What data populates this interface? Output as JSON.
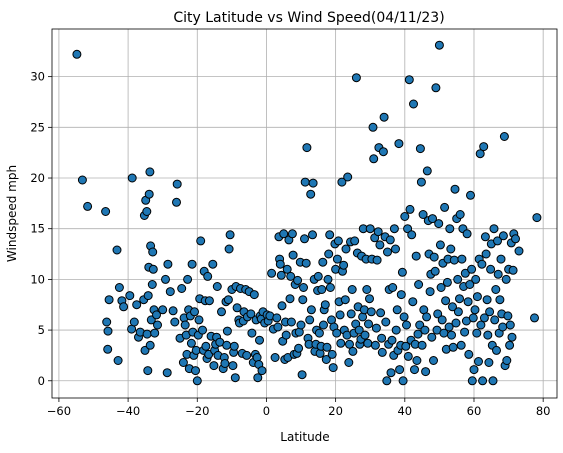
{
  "chart_data": {
    "type": "scatter",
    "title": "City Latitude vs Wind Speed(04/11/23)",
    "xlabel": "Latitude",
    "ylabel": "Windspeed mph",
    "xlim": [
      -62,
      84
    ],
    "ylim": [
      -1.7,
      34.7
    ],
    "xticks": [
      -60,
      -40,
      -20,
      0,
      20,
      40,
      60,
      80
    ],
    "yticks": [
      0,
      5,
      10,
      15,
      20,
      25,
      30
    ],
    "grid": true,
    "marker_color": "#1f77b4",
    "edge_color": "#000000",
    "points": [
      [
        -54.8,
        32.2
      ],
      [
        -53.2,
        19.8
      ],
      [
        -51.7,
        17.2
      ],
      [
        -46.5,
        16.7
      ],
      [
        -46.2,
        5.8
      ],
      [
        -45.9,
        3.1
      ],
      [
        -45.8,
        4.9
      ],
      [
        -45.5,
        8.0
      ],
      [
        -43.2,
        12.9
      ],
      [
        -42.9,
        2.0
      ],
      [
        -42.5,
        9.2
      ],
      [
        -41.8,
        7.9
      ],
      [
        -41.3,
        7.3
      ],
      [
        -39.5,
        8.4
      ],
      [
        -39.0,
        5.1
      ],
      [
        -38.8,
        20.0
      ],
      [
        -38.2,
        5.8
      ],
      [
        -37.5,
        7.5
      ],
      [
        -37.0,
        4.3
      ],
      [
        -36.5,
        4.8
      ],
      [
        -35.5,
        8.0
      ],
      [
        -35.3,
        16.3
      ],
      [
        -35.1,
        3.0
      ],
      [
        -34.9,
        17.8
      ],
      [
        -34.6,
        16.7
      ],
      [
        -34.5,
        4.6
      ],
      [
        -34.3,
        1.0
      ],
      [
        -34.2,
        8.4
      ],
      [
        -34.0,
        11.2
      ],
      [
        -33.9,
        18.4
      ],
      [
        -33.7,
        20.6
      ],
      [
        -33.6,
        3.5
      ],
      [
        -33.5,
        13.3
      ],
      [
        -33.3,
        6.0
      ],
      [
        -33.0,
        9.5
      ],
      [
        -32.9,
        12.7
      ],
      [
        -32.7,
        11.0
      ],
      [
        -32.5,
        7.0
      ],
      [
        -32.3,
        4.7
      ],
      [
        -31.8,
        6.5
      ],
      [
        -31.5,
        5.5
      ],
      [
        -30.0,
        7.0
      ],
      [
        -29.2,
        10.0
      ],
      [
        -28.7,
        0.8
      ],
      [
        -28.5,
        11.5
      ],
      [
        -27.8,
        8.8
      ],
      [
        -27.0,
        6.9
      ],
      [
        -26.5,
        5.8
      ],
      [
        -26.0,
        17.6
      ],
      [
        -25.8,
        19.4
      ],
      [
        -25.0,
        4.2
      ],
      [
        -24.5,
        9.1
      ],
      [
        -24.0,
        1.8
      ],
      [
        -23.8,
        6.2
      ],
      [
        -23.5,
        5.5
      ],
      [
        -23.2,
        4.5
      ],
      [
        -23.0,
        2.6
      ],
      [
        -22.8,
        10.0
      ],
      [
        -22.5,
        7.0
      ],
      [
        -22.3,
        1.2
      ],
      [
        -22.0,
        6.4
      ],
      [
        -21.7,
        3.7
      ],
      [
        -21.5,
        11.5
      ],
      [
        -21.3,
        4.8
      ],
      [
        -21.0,
        2.5
      ],
      [
        -20.8,
        6.8
      ],
      [
        -20.5,
        1.0
      ],
      [
        -20.3,
        3.0
      ],
      [
        -20.0,
        0.0
      ],
      [
        -19.7,
        4.5
      ],
      [
        -19.5,
        6.0
      ],
      [
        -19.3,
        8.1
      ],
      [
        -19.0,
        13.8
      ],
      [
        -18.5,
        5.0
      ],
      [
        -18.2,
        3.0
      ],
      [
        -18.0,
        10.8
      ],
      [
        -17.7,
        7.9
      ],
      [
        -17.5,
        3.4
      ],
      [
        -17.2,
        2.2
      ],
      [
        -17.0,
        10.3
      ],
      [
        -16.7,
        2.6
      ],
      [
        -16.5,
        7.9
      ],
      [
        -16.0,
        4.4
      ],
      [
        -15.5,
        11.5
      ],
      [
        -15.2,
        1.5
      ],
      [
        -15.0,
        3.0
      ],
      [
        -14.7,
        3.6
      ],
      [
        -14.4,
        4.3
      ],
      [
        -14.2,
        9.3
      ],
      [
        -14.0,
        2.5
      ],
      [
        -13.5,
        3.8
      ],
      [
        -13.0,
        6.8
      ],
      [
        -12.5,
        1.2
      ],
      [
        -12.2,
        2.3
      ],
      [
        -12.0,
        1.7
      ],
      [
        -11.7,
        7.8
      ],
      [
        -11.5,
        3.5
      ],
      [
        -11.3,
        4.9
      ],
      [
        -11.0,
        8.0
      ],
      [
        -10.8,
        13.0
      ],
      [
        -10.5,
        14.4
      ],
      [
        -10.0,
        9.0
      ],
      [
        -9.7,
        1.5
      ],
      [
        -9.5,
        2.8
      ],
      [
        -9.3,
        3.4
      ],
      [
        -9.0,
        0.3
      ],
      [
        -8.8,
        9.3
      ],
      [
        -8.5,
        7.2
      ],
      [
        -8.0,
        6.0
      ],
      [
        -7.8,
        5.7
      ],
      [
        -7.5,
        9.1
      ],
      [
        -7.0,
        2.7
      ],
      [
        -6.7,
        5.9
      ],
      [
        -6.5,
        6.8
      ],
      [
        -6.0,
        9.0
      ],
      [
        -5.7,
        2.5
      ],
      [
        -5.5,
        6.3
      ],
      [
        -5.0,
        8.8
      ],
      [
        -4.5,
        6.6
      ],
      [
        -4.2,
        4.7
      ],
      [
        -3.8,
        1.8
      ],
      [
        -3.5,
        8.5
      ],
      [
        -3.2,
        2.6
      ],
      [
        -3.0,
        6.0
      ],
      [
        -2.7,
        2.3
      ],
      [
        -2.5,
        0.3
      ],
      [
        -2.2,
        1.6
      ],
      [
        -2.0,
        4.0
      ],
      [
        -1.8,
        6.4
      ],
      [
        -1.5,
        6.1
      ],
      [
        -1.3,
        1.0
      ],
      [
        -1.0,
        6.8
      ],
      [
        -0.5,
        5.7
      ],
      [
        0.2,
        6.5
      ],
      [
        0.5,
        5.9
      ],
      [
        1.0,
        6.4
      ],
      [
        1.5,
        10.6
      ],
      [
        2.0,
        5.1
      ],
      [
        2.5,
        2.3
      ],
      [
        3.0,
        6.2
      ],
      [
        3.3,
        5.3
      ],
      [
        3.6,
        14.2
      ],
      [
        3.8,
        12.0
      ],
      [
        4.0,
        11.5
      ],
      [
        4.3,
        10.4
      ],
      [
        4.5,
        7.4
      ],
      [
        4.7,
        3.9
      ],
      [
        5.0,
        14.5
      ],
      [
        5.3,
        2.1
      ],
      [
        5.5,
        5.8
      ],
      [
        5.7,
        4.5
      ],
      [
        6.0,
        11.0
      ],
      [
        6.2,
        2.3
      ],
      [
        6.5,
        13.9
      ],
      [
        6.8,
        8.1
      ],
      [
        7.0,
        10.3
      ],
      [
        7.2,
        5.8
      ],
      [
        7.5,
        14.5
      ],
      [
        7.7,
        12.4
      ],
      [
        8.0,
        2.6
      ],
      [
        8.3,
        9.5
      ],
      [
        8.5,
        4.7
      ],
      [
        8.8,
        2.7
      ],
      [
        9.0,
        9.9
      ],
      [
        9.3,
        3.2
      ],
      [
        9.5,
        4.8
      ],
      [
        9.8,
        11.7
      ],
      [
        10.0,
        5.5
      ],
      [
        10.3,
        0.6
      ],
      [
        10.5,
        8.0
      ],
      [
        10.7,
        9.2
      ],
      [
        11.0,
        14.0
      ],
      [
        11.2,
        19.6
      ],
      [
        11.5,
        11.6
      ],
      [
        11.7,
        23.0
      ],
      [
        12.0,
        4.2
      ],
      [
        12.3,
        3.6
      ],
      [
        12.5,
        6.0
      ],
      [
        12.8,
        18.4
      ],
      [
        13.0,
        7.0
      ],
      [
        13.3,
        14.4
      ],
      [
        13.5,
        19.5
      ],
      [
        13.8,
        10.0
      ],
      [
        14.0,
        2.9
      ],
      [
        14.3,
        3.6
      ],
      [
        14.5,
        5.0
      ],
      [
        14.8,
        8.9
      ],
      [
        15.0,
        10.3
      ],
      [
        15.3,
        4.7
      ],
      [
        15.5,
        2.7
      ],
      [
        15.8,
        3.4
      ],
      [
        16.0,
        9.0
      ],
      [
        16.3,
        11.7
      ],
      [
        16.5,
        5.5
      ],
      [
        16.7,
        7.0
      ],
      [
        17.0,
        7.5
      ],
      [
        17.3,
        2.1
      ],
      [
        17.5,
        3.3
      ],
      [
        17.8,
        10.0
      ],
      [
        18.0,
        12.5
      ],
      [
        18.3,
        14.4
      ],
      [
        18.5,
        9.2
      ],
      [
        18.8,
        6.0
      ],
      [
        19.0,
        2.6
      ],
      [
        19.3,
        1.3
      ],
      [
        19.5,
        5.3
      ],
      [
        19.8,
        13.5
      ],
      [
        20.0,
        11.0
      ],
      [
        20.3,
        4.7
      ],
      [
        20.5,
        12.0
      ],
      [
        20.8,
        13.8
      ],
      [
        21.0,
        7.8
      ],
      [
        21.3,
        6.5
      ],
      [
        21.5,
        3.7
      ],
      [
        21.8,
        19.6
      ],
      [
        22.0,
        10.8
      ],
      [
        22.3,
        11.4
      ],
      [
        22.5,
        5.0
      ],
      [
        22.8,
        8.0
      ],
      [
        23.0,
        13.0
      ],
      [
        23.3,
        4.5
      ],
      [
        23.5,
        20.1
      ],
      [
        23.8,
        1.8
      ],
      [
        24.0,
        3.6
      ],
      [
        24.3,
        13.7
      ],
      [
        24.5,
        6.6
      ],
      [
        24.8,
        9.0
      ],
      [
        25.0,
        2.9
      ],
      [
        25.3,
        4.7
      ],
      [
        25.5,
        13.8
      ],
      [
        25.8,
        5.6
      ],
      [
        26.0,
        29.9
      ],
      [
        26.3,
        12.6
      ],
      [
        26.5,
        7.3
      ],
      [
        26.8,
        5.0
      ],
      [
        27.0,
        3.6
      ],
      [
        27.3,
        4.1
      ],
      [
        27.5,
        12.3
      ],
      [
        27.8,
        6.3
      ],
      [
        28.0,
        15.0
      ],
      [
        28.3,
        7.0
      ],
      [
        28.5,
        4.5
      ],
      [
        28.8,
        12.0
      ],
      [
        29.0,
        9.0
      ],
      [
        29.3,
        3.7
      ],
      [
        29.5,
        5.6
      ],
      [
        29.8,
        8.1
      ],
      [
        30.0,
        15.0
      ],
      [
        30.3,
        6.8
      ],
      [
        30.5,
        12.0
      ],
      [
        30.8,
        25.0
      ],
      [
        31.0,
        21.9
      ],
      [
        31.3,
        14.1
      ],
      [
        31.5,
        3.5
      ],
      [
        31.8,
        5.2
      ],
      [
        32.0,
        11.9
      ],
      [
        32.3,
        14.7
      ],
      [
        32.5,
        23.0
      ],
      [
        32.8,
        13.4
      ],
      [
        33.0,
        6.7
      ],
      [
        33.3,
        4.2
      ],
      [
        33.5,
        2.8
      ],
      [
        33.8,
        22.6
      ],
      [
        34.0,
        26.0
      ],
      [
        34.3,
        14.2
      ],
      [
        34.5,
        5.8
      ],
      [
        34.8,
        0.0
      ],
      [
        35.0,
        12.7
      ],
      [
        35.3,
        3.6
      ],
      [
        35.5,
        9.0
      ],
      [
        35.8,
        13.9
      ],
      [
        36.0,
        0.8
      ],
      [
        36.3,
        4.0
      ],
      [
        36.5,
        9.2
      ],
      [
        36.8,
        2.5
      ],
      [
        37.0,
        15.0
      ],
      [
        37.3,
        13.0
      ],
      [
        37.5,
        5.0
      ],
      [
        37.8,
        7.0
      ],
      [
        38.0,
        3.0
      ],
      [
        38.3,
        23.4
      ],
      [
        38.5,
        1.1
      ],
      [
        38.8,
        3.5
      ],
      [
        39.0,
        8.5
      ],
      [
        39.3,
        10.7
      ],
      [
        39.5,
        0.0
      ],
      [
        39.8,
        6.3
      ],
      [
        40.0,
        16.2
      ],
      [
        40.3,
        3.4
      ],
      [
        40.5,
        5.5
      ],
      [
        40.8,
        15.0
      ],
      [
        41.0,
        2.4
      ],
      [
        41.3,
        29.7
      ],
      [
        41.5,
        16.9
      ],
      [
        41.8,
        4.0
      ],
      [
        42.0,
        14.4
      ],
      [
        42.3,
        7.8
      ],
      [
        42.5,
        27.3
      ],
      [
        42.8,
        1.1
      ],
      [
        43.0,
        3.6
      ],
      [
        43.3,
        12.3
      ],
      [
        43.5,
        2.0
      ],
      [
        43.8,
        4.6
      ],
      [
        44.0,
        9.5
      ],
      [
        44.3,
        5.5
      ],
      [
        44.5,
        22.9
      ],
      [
        44.8,
        19.6
      ],
      [
        45.0,
        3.5
      ],
      [
        45.3,
        16.4
      ],
      [
        45.5,
        7.0
      ],
      [
        45.8,
        5.0
      ],
      [
        46.0,
        0.9
      ],
      [
        46.3,
        6.3
      ],
      [
        46.5,
        20.7
      ],
      [
        46.8,
        15.8
      ],
      [
        47.0,
        12.5
      ],
      [
        47.3,
        8.8
      ],
      [
        47.5,
        10.5
      ],
      [
        47.8,
        4.3
      ],
      [
        48.0,
        16.0
      ],
      [
        48.3,
        2.0
      ],
      [
        48.5,
        12.2
      ],
      [
        48.8,
        10.8
      ],
      [
        49.0,
        28.9
      ],
      [
        49.3,
        5.0
      ],
      [
        49.5,
        6.6
      ],
      [
        49.8,
        15.5
      ],
      [
        50.0,
        33.1
      ],
      [
        50.3,
        13.4
      ],
      [
        50.5,
        9.2
      ],
      [
        50.8,
        6.0
      ],
      [
        51.0,
        11.6
      ],
      [
        51.3,
        4.7
      ],
      [
        51.5,
        17.1
      ],
      [
        51.8,
        7.9
      ],
      [
        52.0,
        3.1
      ],
      [
        52.3,
        9.7
      ],
      [
        52.5,
        12.0
      ],
      [
        52.8,
        5.3
      ],
      [
        53.0,
        15.0
      ],
      [
        53.3,
        13.0
      ],
      [
        53.5,
        4.5
      ],
      [
        53.8,
        7.3
      ],
      [
        54.0,
        3.3
      ],
      [
        54.3,
        11.9
      ],
      [
        54.5,
        18.9
      ],
      [
        54.8,
        5.7
      ],
      [
        55.0,
        16.0
      ],
      [
        55.3,
        10.0
      ],
      [
        55.5,
        6.8
      ],
      [
        55.8,
        8.1
      ],
      [
        56.0,
        16.4
      ],
      [
        56.3,
        3.5
      ],
      [
        56.5,
        12.0
      ],
      [
        56.8,
        15.0
      ],
      [
        57.0,
        9.3
      ],
      [
        57.3,
        4.8
      ],
      [
        57.5,
        10.6
      ],
      [
        57.8,
        5.9
      ],
      [
        58.0,
        14.5
      ],
      [
        58.3,
        7.8
      ],
      [
        58.5,
        2.6
      ],
      [
        58.8,
        9.5
      ],
      [
        59.0,
        18.3
      ],
      [
        59.3,
        11.0
      ],
      [
        59.5,
        0.0
      ],
      [
        59.8,
        6.2
      ],
      [
        60.0,
        1.1
      ],
      [
        60.3,
        7.0
      ],
      [
        60.5,
        10.0
      ],
      [
        60.8,
        4.7
      ],
      [
        61.0,
        8.3
      ],
      [
        61.3,
        1.9
      ],
      [
        61.5,
        12.0
      ],
      [
        61.8,
        22.4
      ],
      [
        62.0,
        5.5
      ],
      [
        62.3,
        11.5
      ],
      [
        62.5,
        0.0
      ],
      [
        62.8,
        23.1
      ],
      [
        63.0,
        6.2
      ],
      [
        63.3,
        14.2
      ],
      [
        63.5,
        12.5
      ],
      [
        63.8,
        8.0
      ],
      [
        64.0,
        4.5
      ],
      [
        64.3,
        1.8
      ],
      [
        64.5,
        6.8
      ],
      [
        64.8,
        11.0
      ],
      [
        65.0,
        13.5
      ],
      [
        65.3,
        3.5
      ],
      [
        65.5,
        0.0
      ],
      [
        65.8,
        15.0
      ],
      [
        66.0,
        6.0
      ],
      [
        66.3,
        9.0
      ],
      [
        66.5,
        3.0
      ],
      [
        66.8,
        13.8
      ],
      [
        67.0,
        10.5
      ],
      [
        67.3,
        4.7
      ],
      [
        67.5,
        8.0
      ],
      [
        67.8,
        12.0
      ],
      [
        68.0,
        6.6
      ],
      [
        68.3,
        5.3
      ],
      [
        68.5,
        14.3
      ],
      [
        68.8,
        24.1
      ],
      [
        69.0,
        1.5
      ],
      [
        69.3,
        10.0
      ],
      [
        69.5,
        2.0
      ],
      [
        69.8,
        6.4
      ],
      [
        70.0,
        11.0
      ],
      [
        70.3,
        3.5
      ],
      [
        70.5,
        5.5
      ],
      [
        70.8,
        13.6
      ],
      [
        71.0,
        4.3
      ],
      [
        71.3,
        10.9
      ],
      [
        71.5,
        14.5
      ],
      [
        72.0,
        14.0
      ],
      [
        73.0,
        12.8
      ],
      [
        77.5,
        6.2
      ],
      [
        78.2,
        16.1
      ]
    ]
  }
}
